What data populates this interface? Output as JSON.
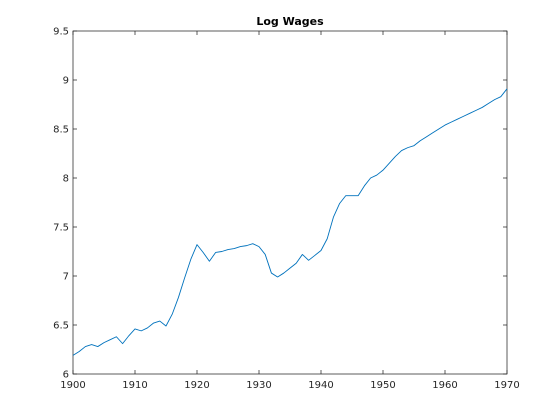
{
  "chart_data": {
    "type": "line",
    "title": "Log Wages",
    "xlabel": "",
    "ylabel": "",
    "xlim": [
      1900,
      1970
    ],
    "ylim": [
      6,
      9.5
    ],
    "xticks": [
      1900,
      1910,
      1920,
      1930,
      1940,
      1950,
      1960,
      1970
    ],
    "xtick_labels": [
      "1900",
      "1910",
      "1920",
      "1930",
      "1940",
      "1950",
      "1960",
      "1970"
    ],
    "yticks": [
      6,
      6.5,
      7,
      7.5,
      8,
      8.5,
      9,
      9.5
    ],
    "ytick_labels": [
      "6",
      "6.5",
      "7",
      "7.5",
      "8",
      "8.5",
      "9",
      "9.5"
    ],
    "grid": false,
    "line_color": "#0072BD",
    "series": [
      {
        "x": [
          1900,
          1901,
          1902,
          1903,
          1904,
          1905,
          1906,
          1907,
          1908,
          1909,
          1910,
          1911,
          1912,
          1913,
          1914,
          1915,
          1916,
          1917,
          1918,
          1919,
          1920,
          1921,
          1922,
          1923,
          1924,
          1925,
          1926,
          1927,
          1928,
          1929,
          1930,
          1931,
          1932,
          1933,
          1934,
          1935,
          1936,
          1937,
          1938,
          1939,
          1940,
          1941,
          1942,
          1943,
          1944,
          1945,
          1946,
          1947,
          1948,
          1949,
          1950,
          1951,
          1952,
          1953,
          1954,
          1955,
          1956,
          1957,
          1958,
          1959,
          1960,
          1961,
          1962,
          1963,
          1964,
          1965,
          1966,
          1967,
          1968,
          1969,
          1970
        ],
        "values": [
          6.19,
          6.23,
          6.28,
          6.3,
          6.28,
          6.32,
          6.35,
          6.38,
          6.31,
          6.39,
          6.46,
          6.44,
          6.47,
          6.52,
          6.54,
          6.49,
          6.61,
          6.78,
          6.98,
          7.17,
          7.32,
          7.24,
          7.15,
          7.24,
          7.25,
          7.27,
          7.28,
          7.3,
          7.31,
          7.33,
          7.3,
          7.22,
          7.03,
          6.99,
          7.03,
          7.08,
          7.13,
          7.22,
          7.16,
          7.21,
          7.26,
          7.38,
          7.6,
          7.74,
          7.82,
          7.82,
          7.82,
          7.92,
          8.0,
          8.03,
          8.08,
          8.15,
          8.22,
          8.28,
          8.31,
          8.33,
          8.38,
          8.42,
          8.46,
          8.5,
          8.54,
          8.57,
          8.6,
          8.63,
          8.66,
          8.69,
          8.72,
          8.76,
          8.8,
          8.83,
          8.91
        ]
      }
    ]
  }
}
